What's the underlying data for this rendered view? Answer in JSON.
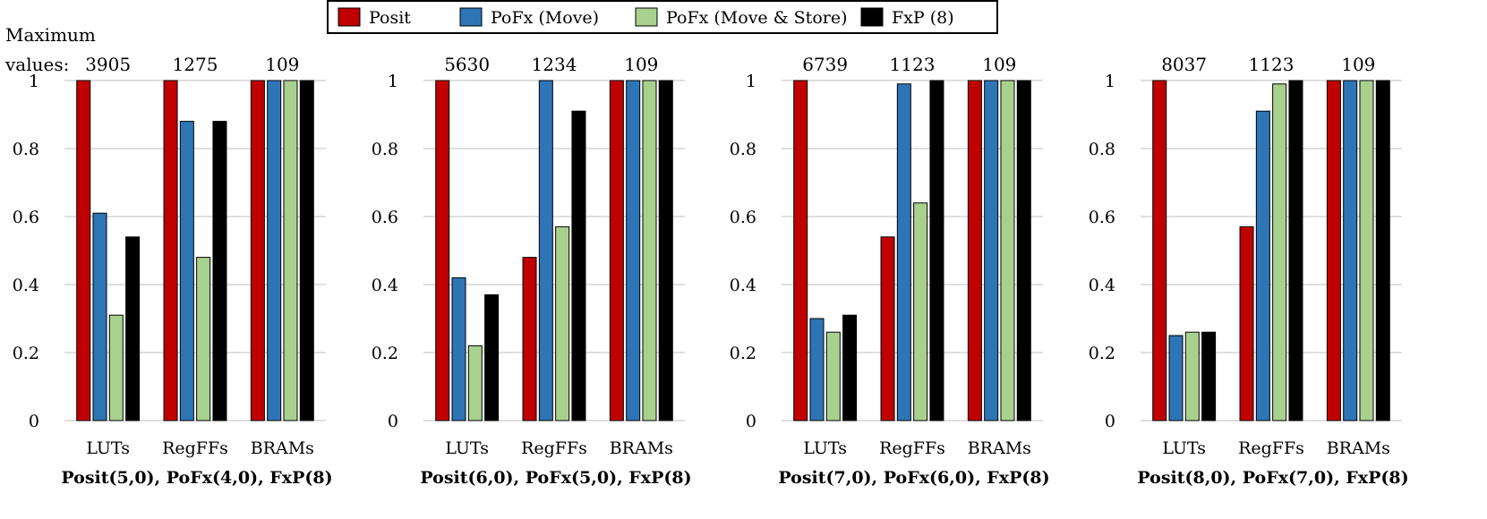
{
  "legend": [
    {
      "name": "Posit",
      "color": "#c00000"
    },
    {
      "name": "PoFx (Move)",
      "color": "#2e75b6"
    },
    {
      "name": "PoFx (Move & Store)",
      "color": "#a9d18e"
    },
    {
      "name": "FxP (8)",
      "color": "#000000"
    }
  ],
  "max_label_line1": "Maximum",
  "max_label_line2": "values:",
  "chart_data": [
    {
      "type": "bar",
      "title": "Posit(5,0), PoFx(4,0), FxP(8)",
      "categories": [
        "LUTs",
        "RegFFs",
        "BRAMs"
      ],
      "max_values": [
        "3905",
        "1275",
        "109"
      ],
      "ylim": [
        0,
        1
      ],
      "yticks": [
        "0",
        "0.2",
        "0.4",
        "0.6",
        "0.8",
        "1"
      ],
      "series": [
        {
          "name": "Posit",
          "values": [
            1,
            1,
            1
          ]
        },
        {
          "name": "PoFx (Move)",
          "values": [
            0.61,
            0.88,
            1
          ]
        },
        {
          "name": "PoFx (Move & Store)",
          "values": [
            0.31,
            0.48,
            1
          ]
        },
        {
          "name": "FxP (8)",
          "values": [
            0.54,
            0.88,
            1
          ]
        }
      ]
    },
    {
      "type": "bar",
      "title": "Posit(6,0), PoFx(5,0), FxP(8)",
      "categories": [
        "LUTs",
        "RegFFs",
        "BRAMs"
      ],
      "max_values": [
        "5630",
        "1234",
        "109"
      ],
      "ylim": [
        0,
        1
      ],
      "yticks": [
        "0",
        "0.2",
        "0.4",
        "0.6",
        "0.8",
        "1"
      ],
      "series": [
        {
          "name": "Posit",
          "values": [
            1,
            0.48,
            1
          ]
        },
        {
          "name": "PoFx (Move)",
          "values": [
            0.42,
            1,
            1
          ]
        },
        {
          "name": "PoFx (Move & Store)",
          "values": [
            0.22,
            0.57,
            1
          ]
        },
        {
          "name": "FxP (8)",
          "values": [
            0.37,
            0.91,
            1
          ]
        }
      ]
    },
    {
      "type": "bar",
      "title": "Posit(7,0), PoFx(6,0), FxP(8)",
      "categories": [
        "LUTs",
        "RegFFs",
        "BRAMs"
      ],
      "max_values": [
        "6739",
        "1123",
        "109"
      ],
      "ylim": [
        0,
        1
      ],
      "yticks": [
        "0",
        "0.2",
        "0.4",
        "0.6",
        "0.8",
        "1"
      ],
      "series": [
        {
          "name": "Posit",
          "values": [
            1,
            0.54,
            1
          ]
        },
        {
          "name": "PoFx (Move)",
          "values": [
            0.3,
            0.99,
            1
          ]
        },
        {
          "name": "PoFx (Move & Store)",
          "values": [
            0.26,
            0.64,
            1
          ]
        },
        {
          "name": "FxP (8)",
          "values": [
            0.31,
            1,
            1
          ]
        }
      ]
    },
    {
      "type": "bar",
      "title": "Posit(8,0), PoFx(7,0), FxP(8)",
      "categories": [
        "LUTs",
        "RegFFs",
        "BRAMs"
      ],
      "max_values": [
        "8037",
        "1123",
        "109"
      ],
      "ylim": [
        0,
        1
      ],
      "yticks": [
        "0",
        "0.2",
        "0.4",
        "0.6",
        "0.8",
        "1"
      ],
      "series": [
        {
          "name": "Posit",
          "values": [
            1,
            0.57,
            1
          ]
        },
        {
          "name": "PoFx (Move)",
          "values": [
            0.25,
            0.91,
            1
          ]
        },
        {
          "name": "PoFx (Move & Store)",
          "values": [
            0.26,
            0.99,
            1
          ]
        },
        {
          "name": "FxP (8)",
          "values": [
            0.26,
            1,
            1
          ]
        }
      ]
    }
  ]
}
